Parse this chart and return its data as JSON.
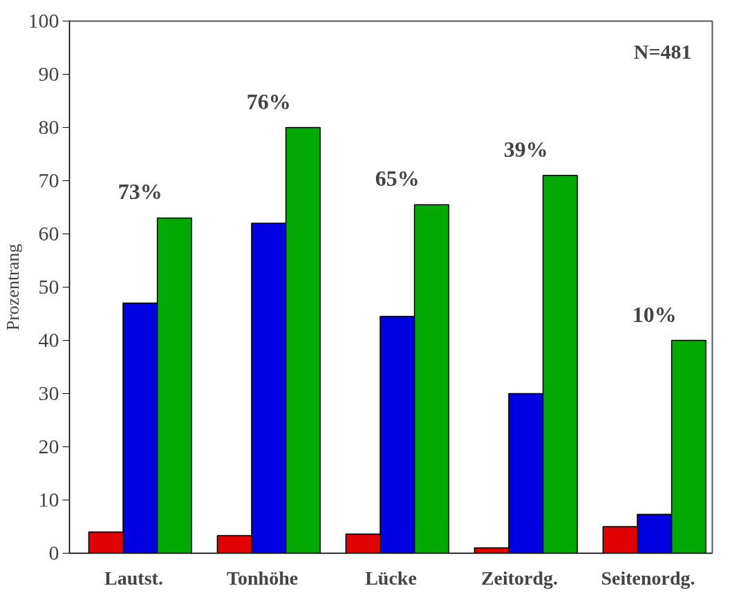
{
  "chart_data": {
    "type": "bar",
    "ylabel": "Prozentrang",
    "categories": [
      "Lautst.",
      "Tonhöhe",
      "Lücke",
      "Zeitordg.",
      "Seitenordg."
    ],
    "series": [
      {
        "color": "#e00000",
        "values": [
          4,
          3.3,
          3.6,
          1,
          5
        ]
      },
      {
        "color": "#0000e0",
        "values": [
          47,
          62,
          44.5,
          30,
          7.3
        ]
      },
      {
        "color": "#00aa00",
        "values": [
          63,
          80,
          65.5,
          71,
          40
        ]
      }
    ],
    "ylim": [
      0,
      100
    ],
    "yticks": [
      0,
      10,
      20,
      30,
      40,
      50,
      60,
      70,
      80,
      90,
      100
    ],
    "grid": false,
    "annotations": [
      "N=481",
      "73%",
      "76%",
      "65%",
      "39%",
      "10%"
    ]
  }
}
